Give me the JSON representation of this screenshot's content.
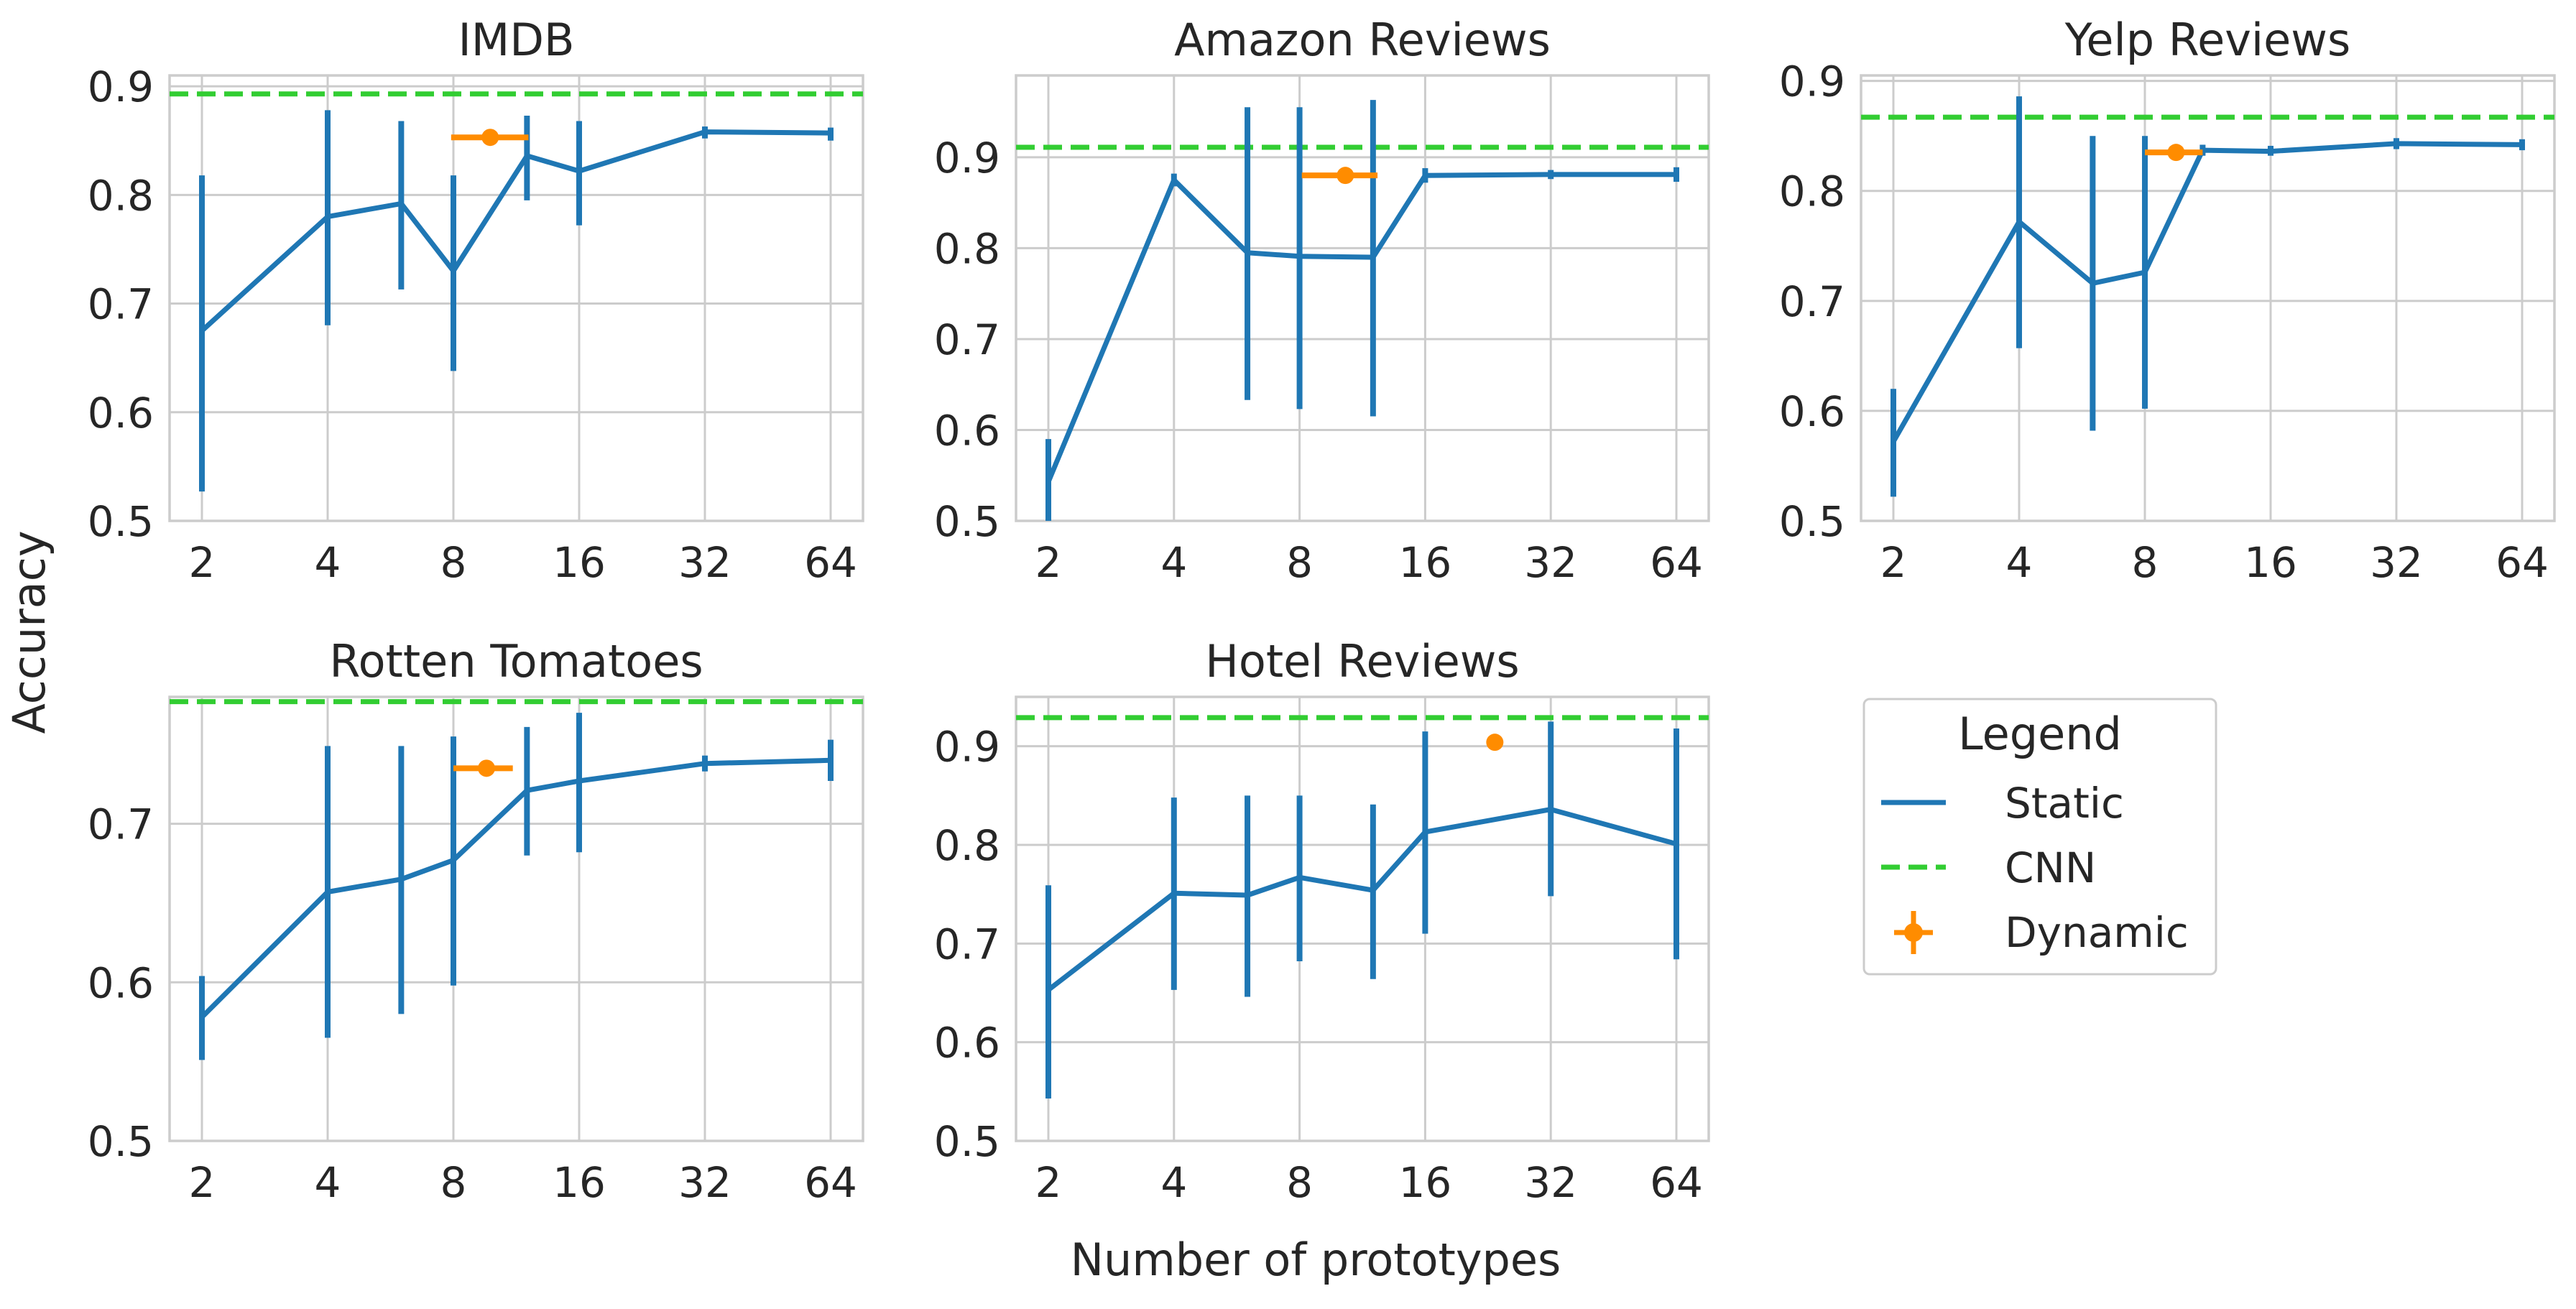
{
  "figure": {
    "ylabel": "Accuracy",
    "xlabel": "Number of prototypes"
  },
  "colors": {
    "static": "#1f77b4",
    "cnn": "#32cd32",
    "dynamic": "#ff8c00",
    "grid": "#cccccc",
    "text": "#262626"
  },
  "legend": {
    "title": "Legend",
    "placement": "lower-right-panel",
    "items": [
      {
        "label": "Static",
        "style": "line"
      },
      {
        "label": "CNN",
        "style": "dashed"
      },
      {
        "label": "Dynamic",
        "style": "errorbar-marker"
      }
    ]
  },
  "chart_data": [
    {
      "type": "line",
      "title": "IMDB",
      "x_scale": "log2",
      "x_ticks": [
        2,
        4,
        8,
        16,
        32,
        64
      ],
      "x_tick_labels": [
        "2",
        "4",
        "8",
        "16",
        "32",
        "64"
      ],
      "y_ticks": [
        0.5,
        0.6,
        0.7,
        0.8,
        0.9
      ],
      "y_tick_labels": [
        "0.5",
        "0.6",
        "0.7",
        "0.8",
        "0.9"
      ],
      "ylim": [
        0.5,
        0.91
      ],
      "static": {
        "x": [
          2,
          4,
          6,
          8,
          12,
          16,
          32,
          64
        ],
        "y": [
          0.675,
          0.78,
          0.792,
          0.73,
          0.836,
          0.822,
          0.858,
          0.857
        ],
        "err_low": [
          0.527,
          0.68,
          0.713,
          0.638,
          0.795,
          0.772,
          0.852,
          0.85
        ],
        "err_high": [
          0.818,
          0.878,
          0.868,
          0.818,
          0.873,
          0.868,
          0.863,
          0.862
        ]
      },
      "cnn": 0.893,
      "dynamic": {
        "x": 9.8,
        "y": 0.853,
        "x_low": 7.9,
        "x_high": 12.1
      }
    },
    {
      "type": "line",
      "title": "Amazon Reviews",
      "x_scale": "log2",
      "x_ticks": [
        2,
        4,
        8,
        16,
        32,
        64
      ],
      "x_tick_labels": [
        "2",
        "4",
        "8",
        "16",
        "32",
        "64"
      ],
      "y_ticks": [
        0.5,
        0.6,
        0.7,
        0.8,
        0.9
      ],
      "y_tick_labels": [
        "0.5",
        "0.6",
        "0.7",
        "0.8",
        "0.9"
      ],
      "ylim": [
        0.5,
        0.99
      ],
      "static": {
        "x": [
          2,
          4,
          6,
          8,
          12,
          16,
          32,
          64
        ],
        "y": [
          0.543,
          0.875,
          0.795,
          0.791,
          0.79,
          0.88,
          0.881,
          0.881
        ],
        "err_low": [
          0.5,
          0.868,
          0.633,
          0.623,
          0.615,
          0.872,
          0.876,
          0.873
        ],
        "err_high": [
          0.59,
          0.882,
          0.955,
          0.955,
          0.963,
          0.888,
          0.886,
          0.889
        ]
      },
      "cnn": 0.911,
      "dynamic": {
        "x": 10.3,
        "y": 0.88,
        "x_low": 8.1,
        "x_high": 12.3
      }
    },
    {
      "type": "line",
      "title": "Yelp Reviews",
      "x_scale": "log2",
      "x_ticks": [
        2,
        4,
        8,
        16,
        32,
        64
      ],
      "x_tick_labels": [
        "2",
        "4",
        "8",
        "16",
        "32",
        "64"
      ],
      "y_ticks": [
        0.5,
        0.6,
        0.7,
        0.8,
        0.9
      ],
      "y_tick_labels": [
        "0.5",
        "0.6",
        "0.7",
        "0.8",
        "0.9"
      ],
      "ylim": [
        0.5,
        0.905
      ],
      "static": {
        "x": [
          2,
          4,
          6,
          8,
          11,
          16,
          32,
          64
        ],
        "y": [
          0.572,
          0.772,
          0.716,
          0.726,
          0.837,
          0.836,
          0.843,
          0.842
        ],
        "err_low": [
          0.522,
          0.657,
          0.582,
          0.602,
          0.832,
          0.832,
          0.838,
          0.837
        ],
        "err_high": [
          0.62,
          0.886,
          0.85,
          0.85,
          0.842,
          0.841,
          0.848,
          0.847
        ]
      },
      "cnn": 0.867,
      "dynamic": {
        "x": 9.5,
        "y": 0.835,
        "x_low": 8.0,
        "x_high": 11.0
      }
    },
    {
      "type": "line",
      "title": "Rotten Tomatoes",
      "x_scale": "log2",
      "x_ticks": [
        2,
        4,
        8,
        16,
        32,
        64
      ],
      "x_tick_labels": [
        "2",
        "4",
        "8",
        "16",
        "32",
        "64"
      ],
      "y_ticks": [
        0.5,
        0.6,
        0.7
      ],
      "y_tick_labels": [
        "0.5",
        "0.6",
        "0.7"
      ],
      "ylim": [
        0.5,
        0.78
      ],
      "static": {
        "x": [
          2,
          4,
          6,
          8,
          12,
          16,
          32,
          64
        ],
        "y": [
          0.578,
          0.657,
          0.665,
          0.677,
          0.721,
          0.727,
          0.738,
          0.74
        ],
        "err_low": [
          0.551,
          0.565,
          0.58,
          0.598,
          0.68,
          0.682,
          0.733,
          0.727
        ],
        "err_high": [
          0.604,
          0.749,
          0.749,
          0.755,
          0.761,
          0.77,
          0.743,
          0.753
        ]
      },
      "cnn": 0.777,
      "dynamic": {
        "x": 9.6,
        "y": 0.735,
        "x_low": 8.0,
        "x_high": 11.1
      }
    },
    {
      "type": "line",
      "title": "Hotel Reviews",
      "x_scale": "log2",
      "x_ticks": [
        2,
        4,
        8,
        16,
        32,
        64
      ],
      "x_tick_labels": [
        "2",
        "4",
        "8",
        "16",
        "32",
        "64"
      ],
      "y_ticks": [
        0.5,
        0.6,
        0.7,
        0.8,
        0.9
      ],
      "y_tick_labels": [
        "0.5",
        "0.6",
        "0.7",
        "0.8",
        "0.9"
      ],
      "ylim": [
        0.5,
        0.95
      ],
      "static": {
        "x": [
          2,
          4,
          6,
          8,
          12,
          16,
          32,
          64
        ],
        "y": [
          0.653,
          0.751,
          0.749,
          0.767,
          0.754,
          0.813,
          0.836,
          0.801
        ],
        "err_low": [
          0.543,
          0.653,
          0.646,
          0.682,
          0.664,
          0.71,
          0.748,
          0.684
        ],
        "err_high": [
          0.759,
          0.848,
          0.85,
          0.85,
          0.841,
          0.915,
          0.925,
          0.918
        ]
      },
      "cnn": 0.929,
      "dynamic": {
        "x": 23.5,
        "y": 0.904,
        "x_low": 23.5,
        "x_high": 23.5
      }
    }
  ]
}
